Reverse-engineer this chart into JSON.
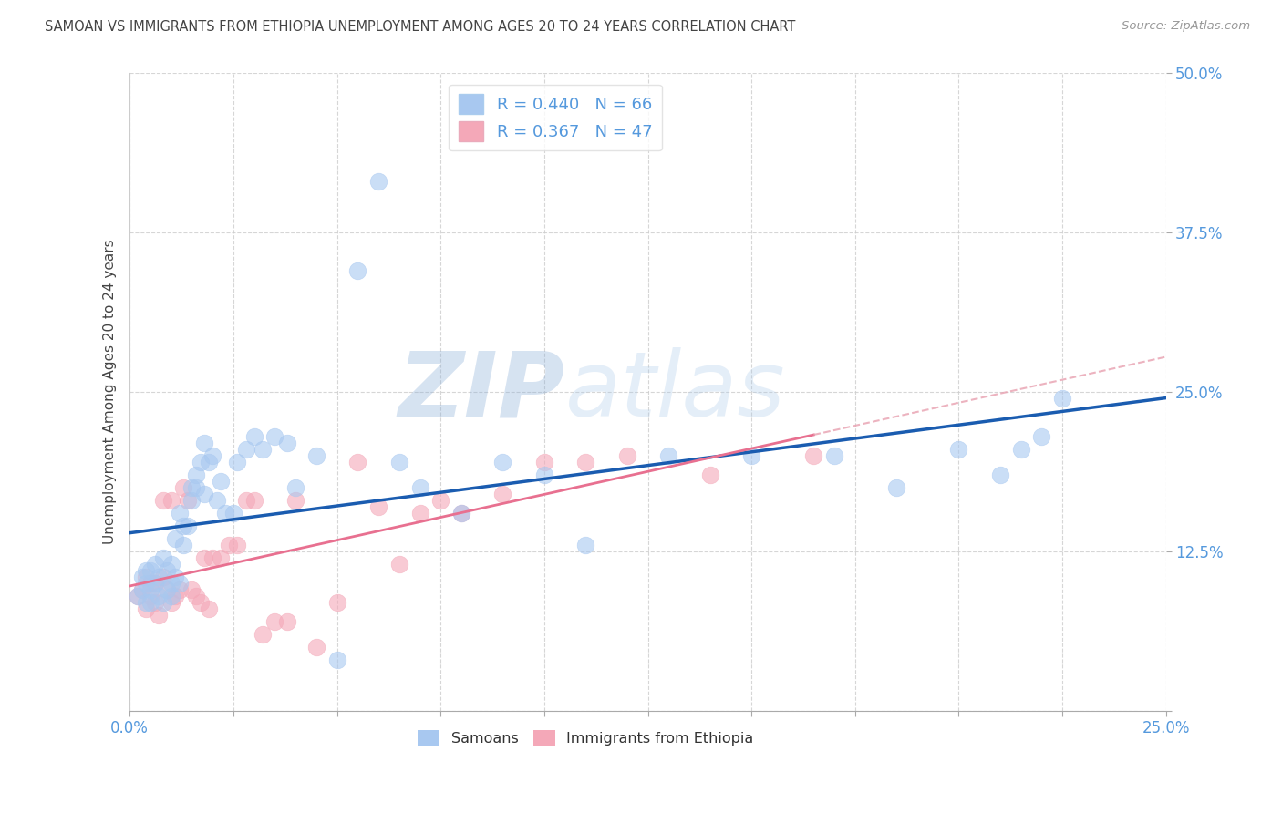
{
  "title": "SAMOAN VS IMMIGRANTS FROM ETHIOPIA UNEMPLOYMENT AMONG AGES 20 TO 24 YEARS CORRELATION CHART",
  "source": "Source: ZipAtlas.com",
  "ylabel": "Unemployment Among Ages 20 to 24 years",
  "xlim": [
    0.0,
    0.25
  ],
  "ylim": [
    0.0,
    0.5
  ],
  "xticks": [
    0.0,
    0.025,
    0.05,
    0.075,
    0.1,
    0.125,
    0.15,
    0.175,
    0.2,
    0.225,
    0.25
  ],
  "yticks": [
    0.0,
    0.125,
    0.25,
    0.375,
    0.5
  ],
  "xticklabels_show": [
    "0.0%",
    "25.0%"
  ],
  "yticklabels": [
    "",
    "12.5%",
    "25.0%",
    "37.5%",
    "50.0%"
  ],
  "watermark_zip": "ZIP",
  "watermark_atlas": "atlas",
  "blue_R": "0.440",
  "blue_N": "66",
  "pink_R": "0.367",
  "pink_N": "47",
  "blue_color": "#A8C8F0",
  "pink_color": "#F4A8B8",
  "blue_line_color": "#1A5CB0",
  "pink_line_color": "#E87090",
  "pink_dash_color": "#E8A0B0",
  "background_color": "#FFFFFF",
  "grid_color": "#CCCCCC",
  "title_color": "#444444",
  "axis_label_color": "#5599DD",
  "legend_text_color": "#333333",
  "samoans_x": [
    0.002,
    0.003,
    0.003,
    0.004,
    0.004,
    0.004,
    0.005,
    0.005,
    0.005,
    0.006,
    0.006,
    0.007,
    0.007,
    0.008,
    0.008,
    0.009,
    0.009,
    0.01,
    0.01,
    0.01,
    0.011,
    0.011,
    0.012,
    0.012,
    0.013,
    0.013,
    0.014,
    0.015,
    0.015,
    0.016,
    0.016,
    0.017,
    0.018,
    0.018,
    0.019,
    0.02,
    0.021,
    0.022,
    0.023,
    0.025,
    0.026,
    0.028,
    0.03,
    0.032,
    0.035,
    0.038,
    0.04,
    0.045,
    0.05,
    0.055,
    0.06,
    0.065,
    0.07,
    0.08,
    0.09,
    0.1,
    0.11,
    0.13,
    0.15,
    0.17,
    0.185,
    0.2,
    0.21,
    0.215,
    0.22,
    0.225
  ],
  "samoans_y": [
    0.09,
    0.105,
    0.095,
    0.11,
    0.085,
    0.1,
    0.095,
    0.11,
    0.085,
    0.1,
    0.115,
    0.09,
    0.105,
    0.12,
    0.085,
    0.095,
    0.11,
    0.1,
    0.115,
    0.09,
    0.135,
    0.105,
    0.155,
    0.1,
    0.145,
    0.13,
    0.145,
    0.175,
    0.165,
    0.185,
    0.175,
    0.195,
    0.17,
    0.21,
    0.195,
    0.2,
    0.165,
    0.18,
    0.155,
    0.155,
    0.195,
    0.205,
    0.215,
    0.205,
    0.215,
    0.21,
    0.175,
    0.2,
    0.04,
    0.345,
    0.415,
    0.195,
    0.175,
    0.155,
    0.195,
    0.185,
    0.13,
    0.2,
    0.2,
    0.2,
    0.175,
    0.205,
    0.185,
    0.205,
    0.215,
    0.245
  ],
  "ethiopia_x": [
    0.002,
    0.003,
    0.004,
    0.004,
    0.005,
    0.005,
    0.006,
    0.006,
    0.007,
    0.008,
    0.008,
    0.009,
    0.01,
    0.01,
    0.011,
    0.012,
    0.013,
    0.014,
    0.015,
    0.016,
    0.017,
    0.018,
    0.019,
    0.02,
    0.022,
    0.024,
    0.026,
    0.028,
    0.03,
    0.032,
    0.035,
    0.038,
    0.04,
    0.045,
    0.05,
    0.055,
    0.06,
    0.065,
    0.07,
    0.075,
    0.08,
    0.09,
    0.1,
    0.11,
    0.12,
    0.14,
    0.165
  ],
  "ethiopia_y": [
    0.09,
    0.095,
    0.08,
    0.105,
    0.1,
    0.09,
    0.085,
    0.1,
    0.075,
    0.105,
    0.165,
    0.095,
    0.085,
    0.165,
    0.09,
    0.095,
    0.175,
    0.165,
    0.095,
    0.09,
    0.085,
    0.12,
    0.08,
    0.12,
    0.12,
    0.13,
    0.13,
    0.165,
    0.165,
    0.06,
    0.07,
    0.07,
    0.165,
    0.05,
    0.085,
    0.195,
    0.16,
    0.115,
    0.155,
    0.165,
    0.155,
    0.17,
    0.195,
    0.195,
    0.2,
    0.185,
    0.2
  ]
}
